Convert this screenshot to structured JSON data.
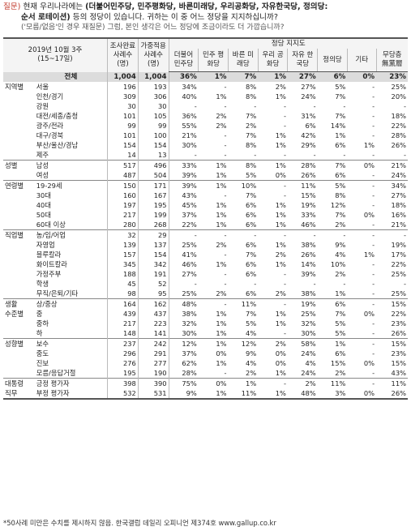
{
  "question": {
    "label": "질문)",
    "line1_pre": " 현재 우리나라에는 ",
    "line1_parties": "(더불어민주당, 민주평화당, 바른미래당, 우리공화당, 자유한국당, 정의당:",
    "line2_parties": "순서 로테이션)",
    "line2_post": " 등의 정당이 있습니다. 귀하는 이 중 어느 정당을 지지하십니까?",
    "line3": "('모름/없음'인 경우 재질문) 그럼, 본인 생각은 어느 정당에 조금이라도 더 가깝습니까?"
  },
  "header": {
    "period": "2019년 10월 3주",
    "period_sub": "(15~17일)",
    "n_complete": "조사완료 사례수 (명)",
    "n_weighted": "가중적용 사례수 (명)",
    "party_support": "정당 지지도",
    "parties": [
      "더불어 민주당",
      "민주 평화당",
      "바른 미래당",
      "우리 공화당",
      "자유 한국당",
      "정의당",
      "기타",
      "무당층 無黨層"
    ]
  },
  "rows": [
    {
      "group": "",
      "cat": "전체",
      "n1": "1,004",
      "n2": "1,004",
      "v": [
        "36%",
        "1%",
        "7%",
        "1%",
        "27%",
        "6%",
        "0%",
        "23%"
      ],
      "total": true
    },
    {
      "group": "지역별",
      "cat": "서울",
      "n1": "196",
      "n2": "193",
      "v": [
        "34%",
        "-",
        "8%",
        "2%",
        "27%",
        "5%",
        "-",
        "25%"
      ]
    },
    {
      "group": "",
      "cat": "인천/경기",
      "n1": "309",
      "n2": "306",
      "v": [
        "40%",
        "1%",
        "8%",
        "1%",
        "24%",
        "7%",
        "-",
        "20%"
      ]
    },
    {
      "group": "",
      "cat": "강원",
      "n1": "30",
      "n2": "30",
      "v": [
        "-",
        "-",
        "-",
        "-",
        "-",
        "-",
        "-",
        "-"
      ]
    },
    {
      "group": "",
      "cat": "대전/세종/충청",
      "n1": "101",
      "n2": "105",
      "v": [
        "36%",
        "2%",
        "7%",
        "-",
        "31%",
        "7%",
        "-",
        "18%"
      ]
    },
    {
      "group": "",
      "cat": "광주/전라",
      "n1": "99",
      "n2": "99",
      "v": [
        "55%",
        "2%",
        "2%",
        "-",
        "6%",
        "14%",
        "-",
        "22%"
      ]
    },
    {
      "group": "",
      "cat": "대구/경북",
      "n1": "101",
      "n2": "100",
      "v": [
        "21%",
        "-",
        "7%",
        "1%",
        "42%",
        "1%",
        "-",
        "28%"
      ]
    },
    {
      "group": "",
      "cat": "부산/울산/경남",
      "n1": "154",
      "n2": "154",
      "v": [
        "30%",
        "-",
        "8%",
        "1%",
        "29%",
        "6%",
        "1%",
        "26%"
      ]
    },
    {
      "group": "",
      "cat": "제주",
      "n1": "14",
      "n2": "13",
      "v": [
        "-",
        "-",
        "-",
        "-",
        "-",
        "-",
        "-",
        "-"
      ]
    },
    {
      "group": "성별",
      "cat": "남성",
      "n1": "517",
      "n2": "496",
      "v": [
        "33%",
        "1%",
        "8%",
        "1%",
        "28%",
        "7%",
        "0%",
        "21%"
      ],
      "gstart": true
    },
    {
      "group": "",
      "cat": "여성",
      "n1": "487",
      "n2": "504",
      "v": [
        "39%",
        "1%",
        "5%",
        "0%",
        "26%",
        "6%",
        "-",
        "24%"
      ]
    },
    {
      "group": "연령별",
      "cat": "19-29세",
      "n1": "150",
      "n2": "171",
      "v": [
        "39%",
        "1%",
        "10%",
        "-",
        "11%",
        "5%",
        "-",
        "34%"
      ],
      "gstart": true
    },
    {
      "group": "",
      "cat": "30대",
      "n1": "160",
      "n2": "167",
      "v": [
        "43%",
        "-",
        "7%",
        "-",
        "15%",
        "8%",
        "-",
        "27%"
      ]
    },
    {
      "group": "",
      "cat": "40대",
      "n1": "197",
      "n2": "195",
      "v": [
        "45%",
        "1%",
        "6%",
        "1%",
        "19%",
        "12%",
        "-",
        "18%"
      ]
    },
    {
      "group": "",
      "cat": "50대",
      "n1": "217",
      "n2": "199",
      "v": [
        "37%",
        "1%",
        "6%",
        "1%",
        "33%",
        "7%",
        "0%",
        "16%"
      ]
    },
    {
      "group": "",
      "cat": "60대 이상",
      "n1": "280",
      "n2": "268",
      "v": [
        "22%",
        "1%",
        "6%",
        "1%",
        "46%",
        "2%",
        "-",
        "21%"
      ]
    },
    {
      "group": "직업별",
      "cat": "농/임/어업",
      "n1": "32",
      "n2": "29",
      "v": [
        "-",
        "-",
        "-",
        "-",
        "-",
        "-",
        "-",
        "-"
      ],
      "gstart": true
    },
    {
      "group": "",
      "cat": "자영업",
      "n1": "139",
      "n2": "137",
      "v": [
        "25%",
        "2%",
        "6%",
        "1%",
        "38%",
        "9%",
        "-",
        "19%"
      ]
    },
    {
      "group": "",
      "cat": "블루칼라",
      "n1": "157",
      "n2": "154",
      "v": [
        "41%",
        "-",
        "7%",
        "2%",
        "26%",
        "4%",
        "1%",
        "17%"
      ]
    },
    {
      "group": "",
      "cat": "화이트칼라",
      "n1": "345",
      "n2": "342",
      "v": [
        "46%",
        "1%",
        "6%",
        "1%",
        "14%",
        "10%",
        "-",
        "22%"
      ]
    },
    {
      "group": "",
      "cat": "가정주부",
      "n1": "188",
      "n2": "191",
      "v": [
        "27%",
        "-",
        "6%",
        "-",
        "39%",
        "2%",
        "-",
        "25%"
      ]
    },
    {
      "group": "",
      "cat": "학생",
      "n1": "45",
      "n2": "52",
      "v": [
        "-",
        "-",
        "-",
        "-",
        "-",
        "-",
        "-",
        "-"
      ]
    },
    {
      "group": "",
      "cat": "무직/은퇴/기타",
      "n1": "98",
      "n2": "95",
      "v": [
        "25%",
        "2%",
        "6%",
        "2%",
        "38%",
        "1%",
        "-",
        "25%"
      ]
    },
    {
      "group": "생활",
      "cat": "상/중상",
      "n1": "164",
      "n2": "162",
      "v": [
        "48%",
        "-",
        "11%",
        "-",
        "19%",
        "6%",
        "-",
        "15%"
      ],
      "gstart": true
    },
    {
      "group": "수준별",
      "cat": "중",
      "n1": "439",
      "n2": "437",
      "v": [
        "38%",
        "1%",
        "7%",
        "1%",
        "25%",
        "7%",
        "0%",
        "22%"
      ]
    },
    {
      "group": "",
      "cat": "중하",
      "n1": "217",
      "n2": "223",
      "v": [
        "32%",
        "1%",
        "5%",
        "1%",
        "32%",
        "5%",
        "-",
        "23%"
      ]
    },
    {
      "group": "",
      "cat": "하",
      "n1": "148",
      "n2": "141",
      "v": [
        "30%",
        "1%",
        "4%",
        "-",
        "30%",
        "5%",
        "-",
        "26%"
      ]
    },
    {
      "group": "성향별",
      "cat": "보수",
      "n1": "237",
      "n2": "242",
      "v": [
        "12%",
        "1%",
        "12%",
        "2%",
        "58%",
        "1%",
        "-",
        "15%"
      ],
      "gstart": true
    },
    {
      "group": "",
      "cat": "중도",
      "n1": "296",
      "n2": "291",
      "v": [
        "37%",
        "0%",
        "9%",
        "0%",
        "24%",
        "6%",
        "-",
        "23%"
      ]
    },
    {
      "group": "",
      "cat": "진보",
      "n1": "276",
      "n2": "277",
      "v": [
        "62%",
        "1%",
        "4%",
        "0%",
        "4%",
        "15%",
        "0%",
        "15%"
      ]
    },
    {
      "group": "",
      "cat": "모름/응답거절",
      "n1": "195",
      "n2": "190",
      "v": [
        "28%",
        "-",
        "2%",
        "1%",
        "24%",
        "2%",
        "-",
        "43%"
      ]
    },
    {
      "group": "대통령",
      "cat": "긍정 평가자",
      "n1": "398",
      "n2": "390",
      "v": [
        "75%",
        "0%",
        "1%",
        "-",
        "2%",
        "11%",
        "-",
        "11%"
      ],
      "gstart": true
    },
    {
      "group": "직무",
      "cat": "부정 평가자",
      "n1": "532",
      "n2": "531",
      "v": [
        "9%",
        "1%",
        "11%",
        "1%",
        "48%",
        "3%",
        "0%",
        "26%"
      ],
      "last": true
    }
  ],
  "footnote": "*50사례 미만은 수치를 제시하지 않음. 한국갤럽 데일리 오피니언 제374호 www.gallup.co.kr"
}
